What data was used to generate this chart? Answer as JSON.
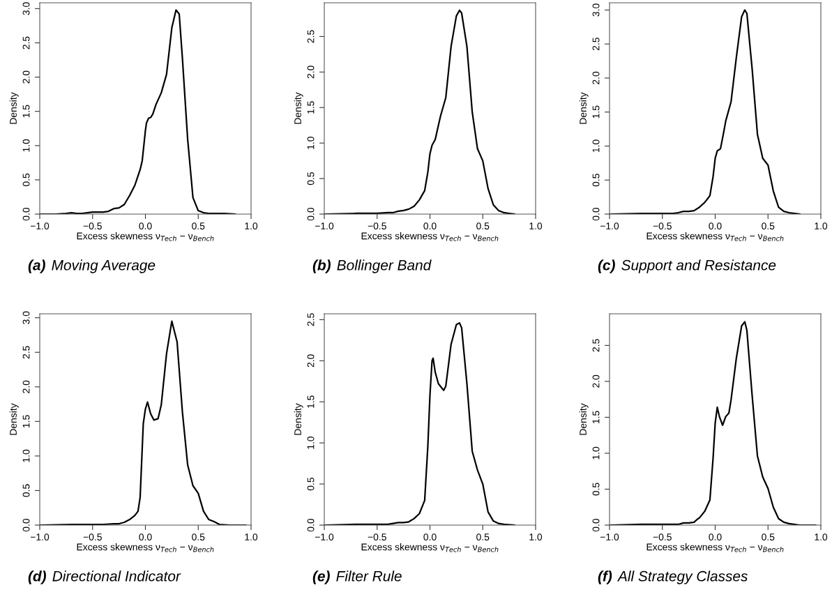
{
  "chart_data": [
    {
      "type": "line",
      "xlabel": "Excess skewness ν$_{Tech}$ − ν$_{Bench}$",
      "ylabel": "Density",
      "annotations": [
        "(a)",
        "Moving Average"
      ],
      "xlim": [
        -1,
        1
      ],
      "ylim": [
        0,
        3.085
      ],
      "xticks": [
        {
          "value": -1,
          "label": "−1.0"
        },
        {
          "value": -0.5,
          "label": "−0.5"
        },
        {
          "value": 0,
          "label": "0.0"
        },
        {
          "value": 0.5,
          "label": "0.5"
        },
        {
          "value": 1,
          "label": "1.0"
        }
      ],
      "yticks": [
        {
          "value": 0,
          "label": "0.0"
        },
        {
          "value": 0.5,
          "label": "0.5"
        },
        {
          "value": 1,
          "label": "1.0"
        },
        {
          "value": 1.5,
          "label": "1.5"
        },
        {
          "value": 2,
          "label": "2.0"
        },
        {
          "value": 2.5,
          "label": "2.5"
        },
        {
          "value": 3,
          "label": "3.0"
        }
      ],
      "series": [
        {
          "color": "#000000",
          "x": [
            -1,
            -0.85,
            -0.75,
            -0.7,
            -0.65,
            -0.6,
            -0.55,
            -0.5,
            -0.45,
            -0.4,
            -0.35,
            -0.3,
            -0.25,
            -0.2,
            -0.15,
            -0.1,
            -0.05,
            -0.03,
            0,
            0.01,
            0.03,
            0.05,
            0.07,
            0.1,
            0.15,
            0.2,
            0.25,
            0.29,
            0.32,
            0.35,
            0.4,
            0.45,
            0.5,
            0.55,
            0.6,
            0.7,
            0.75,
            0.85
          ],
          "values": [
            0,
            0,
            0.01,
            0.02,
            0.01,
            0.01,
            0.02,
            0.03,
            0.03,
            0.03,
            0.04,
            0.08,
            0.09,
            0.14,
            0.27,
            0.42,
            0.65,
            0.78,
            1.22,
            1.33,
            1.4,
            1.41,
            1.46,
            1.6,
            1.77,
            2.04,
            2.72,
            2.98,
            2.92,
            2.28,
            1.09,
            0.24,
            0.05,
            0.02,
            0.01,
            0.01,
            0.01,
            0
          ]
        }
      ]
    },
    {
      "type": "line",
      "xlabel": "Excess skewness ν$_{Tech}$ − ν$_{Bench}$",
      "ylabel": "Density",
      "annotations": [
        "(b)",
        "Bollinger Band"
      ],
      "xlim": [
        -1,
        1
      ],
      "ylim": [
        0,
        2.975
      ],
      "xticks": [
        {
          "value": -1,
          "label": "−1.0"
        },
        {
          "value": -0.5,
          "label": "−0.5"
        },
        {
          "value": 0,
          "label": "0.0"
        },
        {
          "value": 0.5,
          "label": "0.5"
        },
        {
          "value": 1,
          "label": "1.0"
        }
      ],
      "yticks": [
        {
          "value": 0,
          "label": "0.0"
        },
        {
          "value": 0.5,
          "label": "0.5"
        },
        {
          "value": 1,
          "label": "1.0"
        },
        {
          "value": 1.5,
          "label": "1.5"
        },
        {
          "value": 2,
          "label": "2.0"
        },
        {
          "value": 2.5,
          "label": "2.5"
        }
      ],
      "series": [
        {
          "color": "#000000",
          "x": [
            -1,
            -0.7,
            -0.6,
            -0.5,
            -0.4,
            -0.35,
            -0.3,
            -0.25,
            -0.2,
            -0.15,
            -0.1,
            -0.05,
            -0.02,
            0,
            0.02,
            0.05,
            0.08,
            0.1,
            0.15,
            0.2,
            0.25,
            0.28,
            0.3,
            0.35,
            0.4,
            0.45,
            0.5,
            0.55,
            0.6,
            0.65,
            0.7,
            0.75,
            0.8
          ],
          "values": [
            0,
            0.01,
            0.01,
            0.01,
            0.02,
            0.02,
            0.04,
            0.05,
            0.07,
            0.11,
            0.2,
            0.33,
            0.59,
            0.85,
            0.97,
            1.05,
            1.25,
            1.38,
            1.64,
            2.36,
            2.79,
            2.87,
            2.83,
            2.36,
            1.44,
            0.92,
            0.75,
            0.36,
            0.13,
            0.05,
            0.02,
            0.01,
            0
          ]
        }
      ]
    },
    {
      "type": "line",
      "xlabel": "Excess skewness ν$_{Tech}$ − ν$_{Bench}$",
      "ylabel": "Density",
      "annotations": [
        "(c)",
        "Support and Resistance"
      ],
      "xlim": [
        -1,
        1
      ],
      "ylim": [
        0,
        3.106
      ],
      "xticks": [
        {
          "value": -1,
          "label": "−1.0"
        },
        {
          "value": -0.5,
          "label": "−0.5"
        },
        {
          "value": 0,
          "label": "0.0"
        },
        {
          "value": 0.5,
          "label": "0.5"
        },
        {
          "value": 1,
          "label": "1.0"
        }
      ],
      "yticks": [
        {
          "value": 0,
          "label": "0.0"
        },
        {
          "value": 0.5,
          "label": "0.5"
        },
        {
          "value": 1,
          "label": "1.0"
        },
        {
          "value": 1.5,
          "label": "1.5"
        },
        {
          "value": 2,
          "label": "2.0"
        },
        {
          "value": 2.5,
          "label": "2.5"
        },
        {
          "value": 3,
          "label": "3.0"
        }
      ],
      "series": [
        {
          "color": "#000000",
          "x": [
            -1,
            -0.7,
            -0.6,
            -0.5,
            -0.4,
            -0.35,
            -0.3,
            -0.25,
            -0.2,
            -0.15,
            -0.1,
            -0.05,
            -0.02,
            0,
            0.02,
            0.05,
            0.08,
            0.1,
            0.15,
            0.2,
            0.25,
            0.28,
            0.3,
            0.35,
            0.4,
            0.45,
            0.5,
            0.55,
            0.6,
            0.65,
            0.7,
            0.8
          ],
          "values": [
            0,
            0.01,
            0.01,
            0.01,
            0.01,
            0.02,
            0.04,
            0.04,
            0.05,
            0.1,
            0.17,
            0.27,
            0.55,
            0.82,
            0.93,
            0.96,
            1.2,
            1.37,
            1.65,
            2.3,
            2.9,
            3.0,
            2.95,
            2.13,
            1.17,
            0.82,
            0.72,
            0.34,
            0.1,
            0.04,
            0.02,
            0
          ]
        }
      ]
    },
    {
      "type": "line",
      "xlabel": "Excess skewness ν$_{Tech}$ − ν$_{Bench}$",
      "ylabel": "Density",
      "annotations": [
        "(d)",
        "Directional Indicator"
      ],
      "xlim": [
        -1,
        1
      ],
      "ylim": [
        0,
        3.057
      ],
      "xticks": [
        {
          "value": -1,
          "label": "−1.0"
        },
        {
          "value": -0.5,
          "label": "−0.5"
        },
        {
          "value": 0,
          "label": "0.0"
        },
        {
          "value": 0.5,
          "label": "0.5"
        },
        {
          "value": 1,
          "label": "1.0"
        }
      ],
      "yticks": [
        {
          "value": 0,
          "label": "0.0"
        },
        {
          "value": 0.5,
          "label": "0.5"
        },
        {
          "value": 1,
          "label": "1.0"
        },
        {
          "value": 1.5,
          "label": "1.5"
        },
        {
          "value": 2,
          "label": "2.0"
        },
        {
          "value": 2.5,
          "label": "2.5"
        },
        {
          "value": 3,
          "label": "3.0"
        }
      ],
      "series": [
        {
          "color": "#000000",
          "x": [
            -1,
            -0.7,
            -0.5,
            -0.4,
            -0.3,
            -0.25,
            -0.2,
            -0.15,
            -0.1,
            -0.07,
            -0.05,
            -0.02,
            0,
            0.02,
            0.05,
            0.08,
            0.12,
            0.15,
            0.2,
            0.25,
            0.3,
            0.35,
            0.4,
            0.45,
            0.5,
            0.55,
            0.6,
            0.65,
            0.7,
            0.8,
            0.95
          ],
          "values": [
            0,
            0.01,
            0.01,
            0.01,
            0.02,
            0.02,
            0.04,
            0.08,
            0.14,
            0.2,
            0.4,
            1.47,
            1.68,
            1.78,
            1.61,
            1.52,
            1.54,
            1.74,
            2.48,
            2.95,
            2.65,
            1.64,
            0.87,
            0.57,
            0.46,
            0.2,
            0.08,
            0.05,
            0.01,
            0,
            0
          ]
        }
      ]
    },
    {
      "type": "line",
      "xlabel": "Excess skewness ν$_{Tech}$ − ν$_{Bench}$",
      "ylabel": "Density",
      "annotations": [
        "(e)",
        "Filter Rule"
      ],
      "xlim": [
        -1,
        1
      ],
      "ylim": [
        0,
        2.571
      ],
      "xticks": [
        {
          "value": -1,
          "label": "−1.0"
        },
        {
          "value": -0.5,
          "label": "−0.5"
        },
        {
          "value": 0,
          "label": "0.0"
        },
        {
          "value": 0.5,
          "label": "0.5"
        },
        {
          "value": 1,
          "label": "1.0"
        }
      ],
      "yticks": [
        {
          "value": 0,
          "label": "0.0"
        },
        {
          "value": 0.5,
          "label": "0.5"
        },
        {
          "value": 1,
          "label": "1.0"
        },
        {
          "value": 1.5,
          "label": "1.5"
        },
        {
          "value": 2,
          "label": "2.0"
        },
        {
          "value": 2.5,
          "label": "2.5"
        }
      ],
      "series": [
        {
          "color": "#000000",
          "x": [
            -1,
            -0.7,
            -0.5,
            -0.4,
            -0.3,
            -0.25,
            -0.2,
            -0.15,
            -0.1,
            -0.05,
            -0.02,
            0,
            0.02,
            0.03,
            0.05,
            0.08,
            0.13,
            0.15,
            0.2,
            0.25,
            0.28,
            0.3,
            0.35,
            0.4,
            0.45,
            0.5,
            0.55,
            0.6,
            0.65,
            0.7,
            0.8
          ],
          "values": [
            0,
            0.01,
            0.01,
            0.01,
            0.03,
            0.03,
            0.04,
            0.08,
            0.14,
            0.3,
            0.96,
            1.58,
            2.0,
            2.03,
            1.86,
            1.72,
            1.64,
            1.69,
            2.2,
            2.44,
            2.46,
            2.4,
            1.72,
            0.9,
            0.67,
            0.5,
            0.16,
            0.05,
            0.02,
            0.01,
            0
          ]
        }
      ]
    },
    {
      "type": "line",
      "xlabel": "Excess skewness ν$_{Tech}$ − ν$_{Bench}$",
      "ylabel": "Density",
      "annotations": [
        "(f)",
        "All Strategy Classes"
      ],
      "xlim": [
        -1,
        1
      ],
      "ylim": [
        0,
        2.94
      ],
      "xticks": [
        {
          "value": -1,
          "label": "−1.0"
        },
        {
          "value": -0.5,
          "label": "−0.5"
        },
        {
          "value": 0,
          "label": "0.0"
        },
        {
          "value": 0.5,
          "label": "0.5"
        },
        {
          "value": 1,
          "label": "1.0"
        }
      ],
      "yticks": [
        {
          "value": 0,
          "label": "0.0"
        },
        {
          "value": 0.5,
          "label": "0.5"
        },
        {
          "value": 1,
          "label": "1.0"
        },
        {
          "value": 1.5,
          "label": "1.5"
        },
        {
          "value": 2,
          "label": "2.0"
        },
        {
          "value": 2.5,
          "label": "2.5"
        }
      ],
      "series": [
        {
          "color": "#000000",
          "x": [
            -1,
            -0.7,
            -0.5,
            -0.4,
            -0.35,
            -0.3,
            -0.25,
            -0.2,
            -0.17,
            -0.15,
            -0.1,
            -0.05,
            -0.02,
            0,
            0.02,
            0.04,
            0.07,
            0.1,
            0.13,
            0.15,
            0.2,
            0.25,
            0.28,
            0.3,
            0.35,
            0.4,
            0.45,
            0.5,
            0.55,
            0.6,
            0.65,
            0.7,
            0.8,
            0.95
          ],
          "values": [
            0,
            0.01,
            0.01,
            0.01,
            0.01,
            0.03,
            0.03,
            0.04,
            0.08,
            0.1,
            0.19,
            0.35,
            0.93,
            1.42,
            1.64,
            1.51,
            1.39,
            1.51,
            1.56,
            1.74,
            2.32,
            2.77,
            2.83,
            2.71,
            1.8,
            0.96,
            0.67,
            0.51,
            0.25,
            0.09,
            0.04,
            0.02,
            0,
            0
          ]
        }
      ]
    }
  ]
}
